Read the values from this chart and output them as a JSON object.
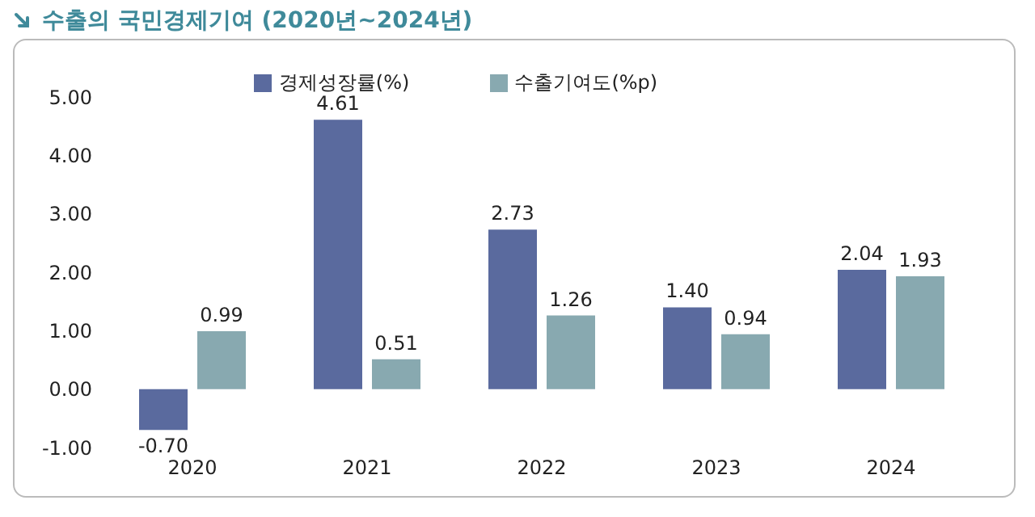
{
  "chart_data": {
    "type": "bar",
    "title": "수출의 국민경제기여 (2020년~2024년)",
    "categories": [
      "2020",
      "2021",
      "2022",
      "2023",
      "2024"
    ],
    "series": [
      {
        "name": "경제성장률(%)",
        "color": "#5a6a9e",
        "values": [
          -0.7,
          4.61,
          2.73,
          1.4,
          2.04
        ],
        "value_labels": [
          "-0.70",
          "4.61",
          "2.73",
          "1.40",
          "2.04"
        ]
      },
      {
        "name": "수출기여도(%p)",
        "color": "#88a9b0",
        "values": [
          0.99,
          0.51,
          1.26,
          0.94,
          1.93
        ],
        "value_labels": [
          "0.99",
          "0.51",
          "1.26",
          "0.94",
          "1.93"
        ]
      }
    ],
    "ylim": [
      -1,
      5
    ],
    "yticks": [
      {
        "value": -1,
        "label": "-1.00"
      },
      {
        "value": 0,
        "label": "0.00"
      },
      {
        "value": 1,
        "label": "1.00"
      },
      {
        "value": 2,
        "label": "2.00"
      },
      {
        "value": 3,
        "label": "3.00"
      },
      {
        "value": 4,
        "label": "4.00"
      },
      {
        "value": 5,
        "label": "5.00"
      }
    ],
    "grid": false,
    "legend": "top"
  }
}
